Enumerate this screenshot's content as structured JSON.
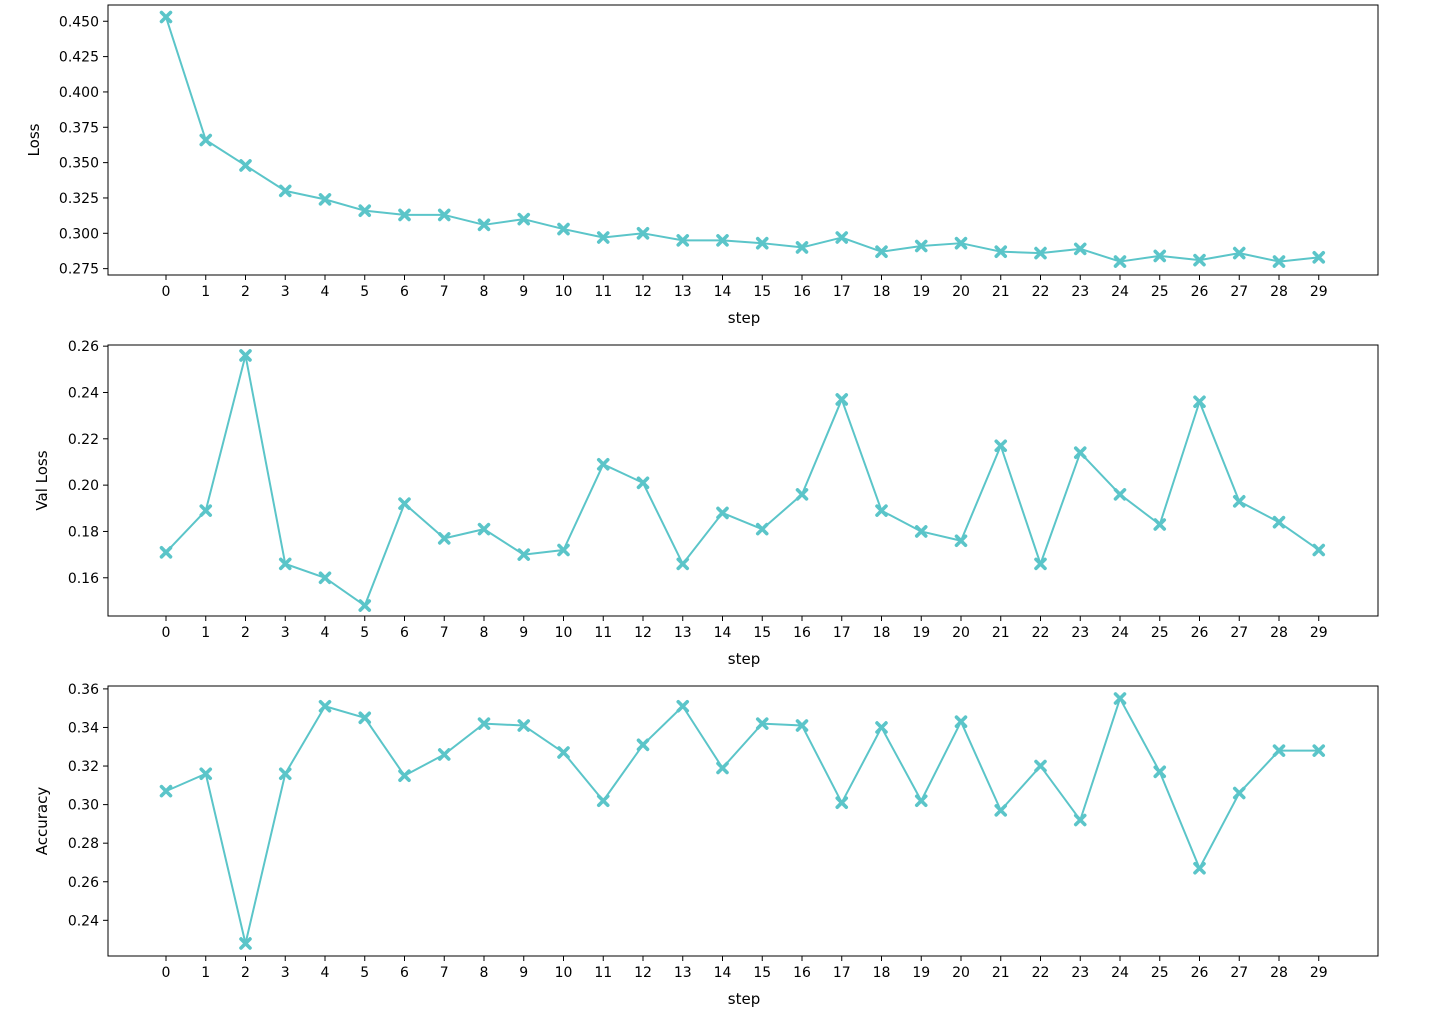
{
  "figure": {
    "line_color": "#5bc5c9",
    "marker": "x-filled",
    "background": "#ffffff"
  },
  "chart_data": [
    {
      "type": "line",
      "xlabel": "step",
      "ylabel": "Loss",
      "x": [
        0,
        1,
        2,
        3,
        4,
        5,
        6,
        7,
        8,
        9,
        10,
        11,
        12,
        13,
        14,
        15,
        16,
        17,
        18,
        19,
        20,
        21,
        22,
        23,
        24,
        25,
        26,
        27,
        28,
        29
      ],
      "x_tick_labels": [
        "0",
        "1",
        "2",
        "3",
        "4",
        "5",
        "6",
        "7",
        "8",
        "9",
        "10",
        "11",
        "12",
        "13",
        "14",
        "15",
        "16",
        "17",
        "18",
        "19",
        "20",
        "21",
        "22",
        "23",
        "24",
        "25",
        "26",
        "27",
        "28",
        "29"
      ],
      "ylim": [
        0.2705,
        0.4615
      ],
      "yticks": [
        "0.275",
        "0.300",
        "0.325",
        "0.350",
        "0.375",
        "0.400",
        "0.425",
        "0.450"
      ],
      "series": [
        {
          "values": [
            0.453,
            0.366,
            0.348,
            0.33,
            0.324,
            0.316,
            0.313,
            0.313,
            0.306,
            0.31,
            0.303,
            0.297,
            0.3,
            0.295,
            0.295,
            0.293,
            0.29,
            0.297,
            0.287,
            0.291,
            0.293,
            0.287,
            0.286,
            0.289,
            0.28,
            0.284,
            0.281,
            0.286,
            0.28,
            0.283
          ]
        }
      ],
      "grid": false
    },
    {
      "type": "line",
      "xlabel": "step",
      "ylabel": "Val Loss",
      "x": [
        0,
        1,
        2,
        3,
        4,
        5,
        6,
        7,
        8,
        9,
        10,
        11,
        12,
        13,
        14,
        15,
        16,
        17,
        18,
        19,
        20,
        21,
        22,
        23,
        24,
        25,
        26,
        27,
        28,
        29
      ],
      "x_tick_labels": [
        "0",
        "1",
        "2",
        "3",
        "4",
        "5",
        "6",
        "7",
        "8",
        "9",
        "10",
        "11",
        "12",
        "13",
        "14",
        "15",
        "16",
        "17",
        "18",
        "19",
        "20",
        "21",
        "22",
        "23",
        "24",
        "25",
        "26",
        "27",
        "28",
        "29"
      ],
      "ylim": [
        0.1435,
        0.2605
      ],
      "yticks": [
        "0.16",
        "0.18",
        "0.20",
        "0.22",
        "0.24",
        "0.26"
      ],
      "series": [
        {
          "values": [
            0.171,
            0.189,
            0.256,
            0.166,
            0.16,
            0.148,
            0.192,
            0.177,
            0.181,
            0.17,
            0.172,
            0.209,
            0.201,
            0.166,
            0.188,
            0.181,
            0.196,
            0.237,
            0.189,
            0.18,
            0.176,
            0.217,
            0.166,
            0.214,
            0.196,
            0.183,
            0.236,
            0.193,
            0.184,
            0.172
          ]
        }
      ],
      "grid": false
    },
    {
      "type": "line",
      "xlabel": "step",
      "ylabel": "Accuracy",
      "x": [
        0,
        1,
        2,
        3,
        4,
        5,
        6,
        7,
        8,
        9,
        10,
        11,
        12,
        13,
        14,
        15,
        16,
        17,
        18,
        19,
        20,
        21,
        22,
        23,
        24,
        25,
        26,
        27,
        28,
        29
      ],
      "x_tick_labels": [
        "0",
        "1",
        "2",
        "3",
        "4",
        "5",
        "6",
        "7",
        "8",
        "9",
        "10",
        "11",
        "12",
        "13",
        "14",
        "15",
        "16",
        "17",
        "18",
        "19",
        "20",
        "21",
        "22",
        "23",
        "24",
        "25",
        "26",
        "27",
        "28",
        "29"
      ],
      "ylim": [
        0.2215,
        0.3615
      ],
      "yticks": [
        "0.24",
        "0.26",
        "0.28",
        "0.30",
        "0.32",
        "0.34",
        "0.36"
      ],
      "series": [
        {
          "values": [
            0.307,
            0.316,
            0.228,
            0.316,
            0.351,
            0.345,
            0.315,
            0.326,
            0.342,
            0.341,
            0.327,
            0.302,
            0.331,
            0.351,
            0.319,
            0.342,
            0.341,
            0.301,
            0.34,
            0.302,
            0.343,
            0.297,
            0.32,
            0.292,
            0.355,
            0.317,
            0.267,
            0.306,
            0.328,
            0.328
          ]
        }
      ],
      "grid": false
    }
  ]
}
